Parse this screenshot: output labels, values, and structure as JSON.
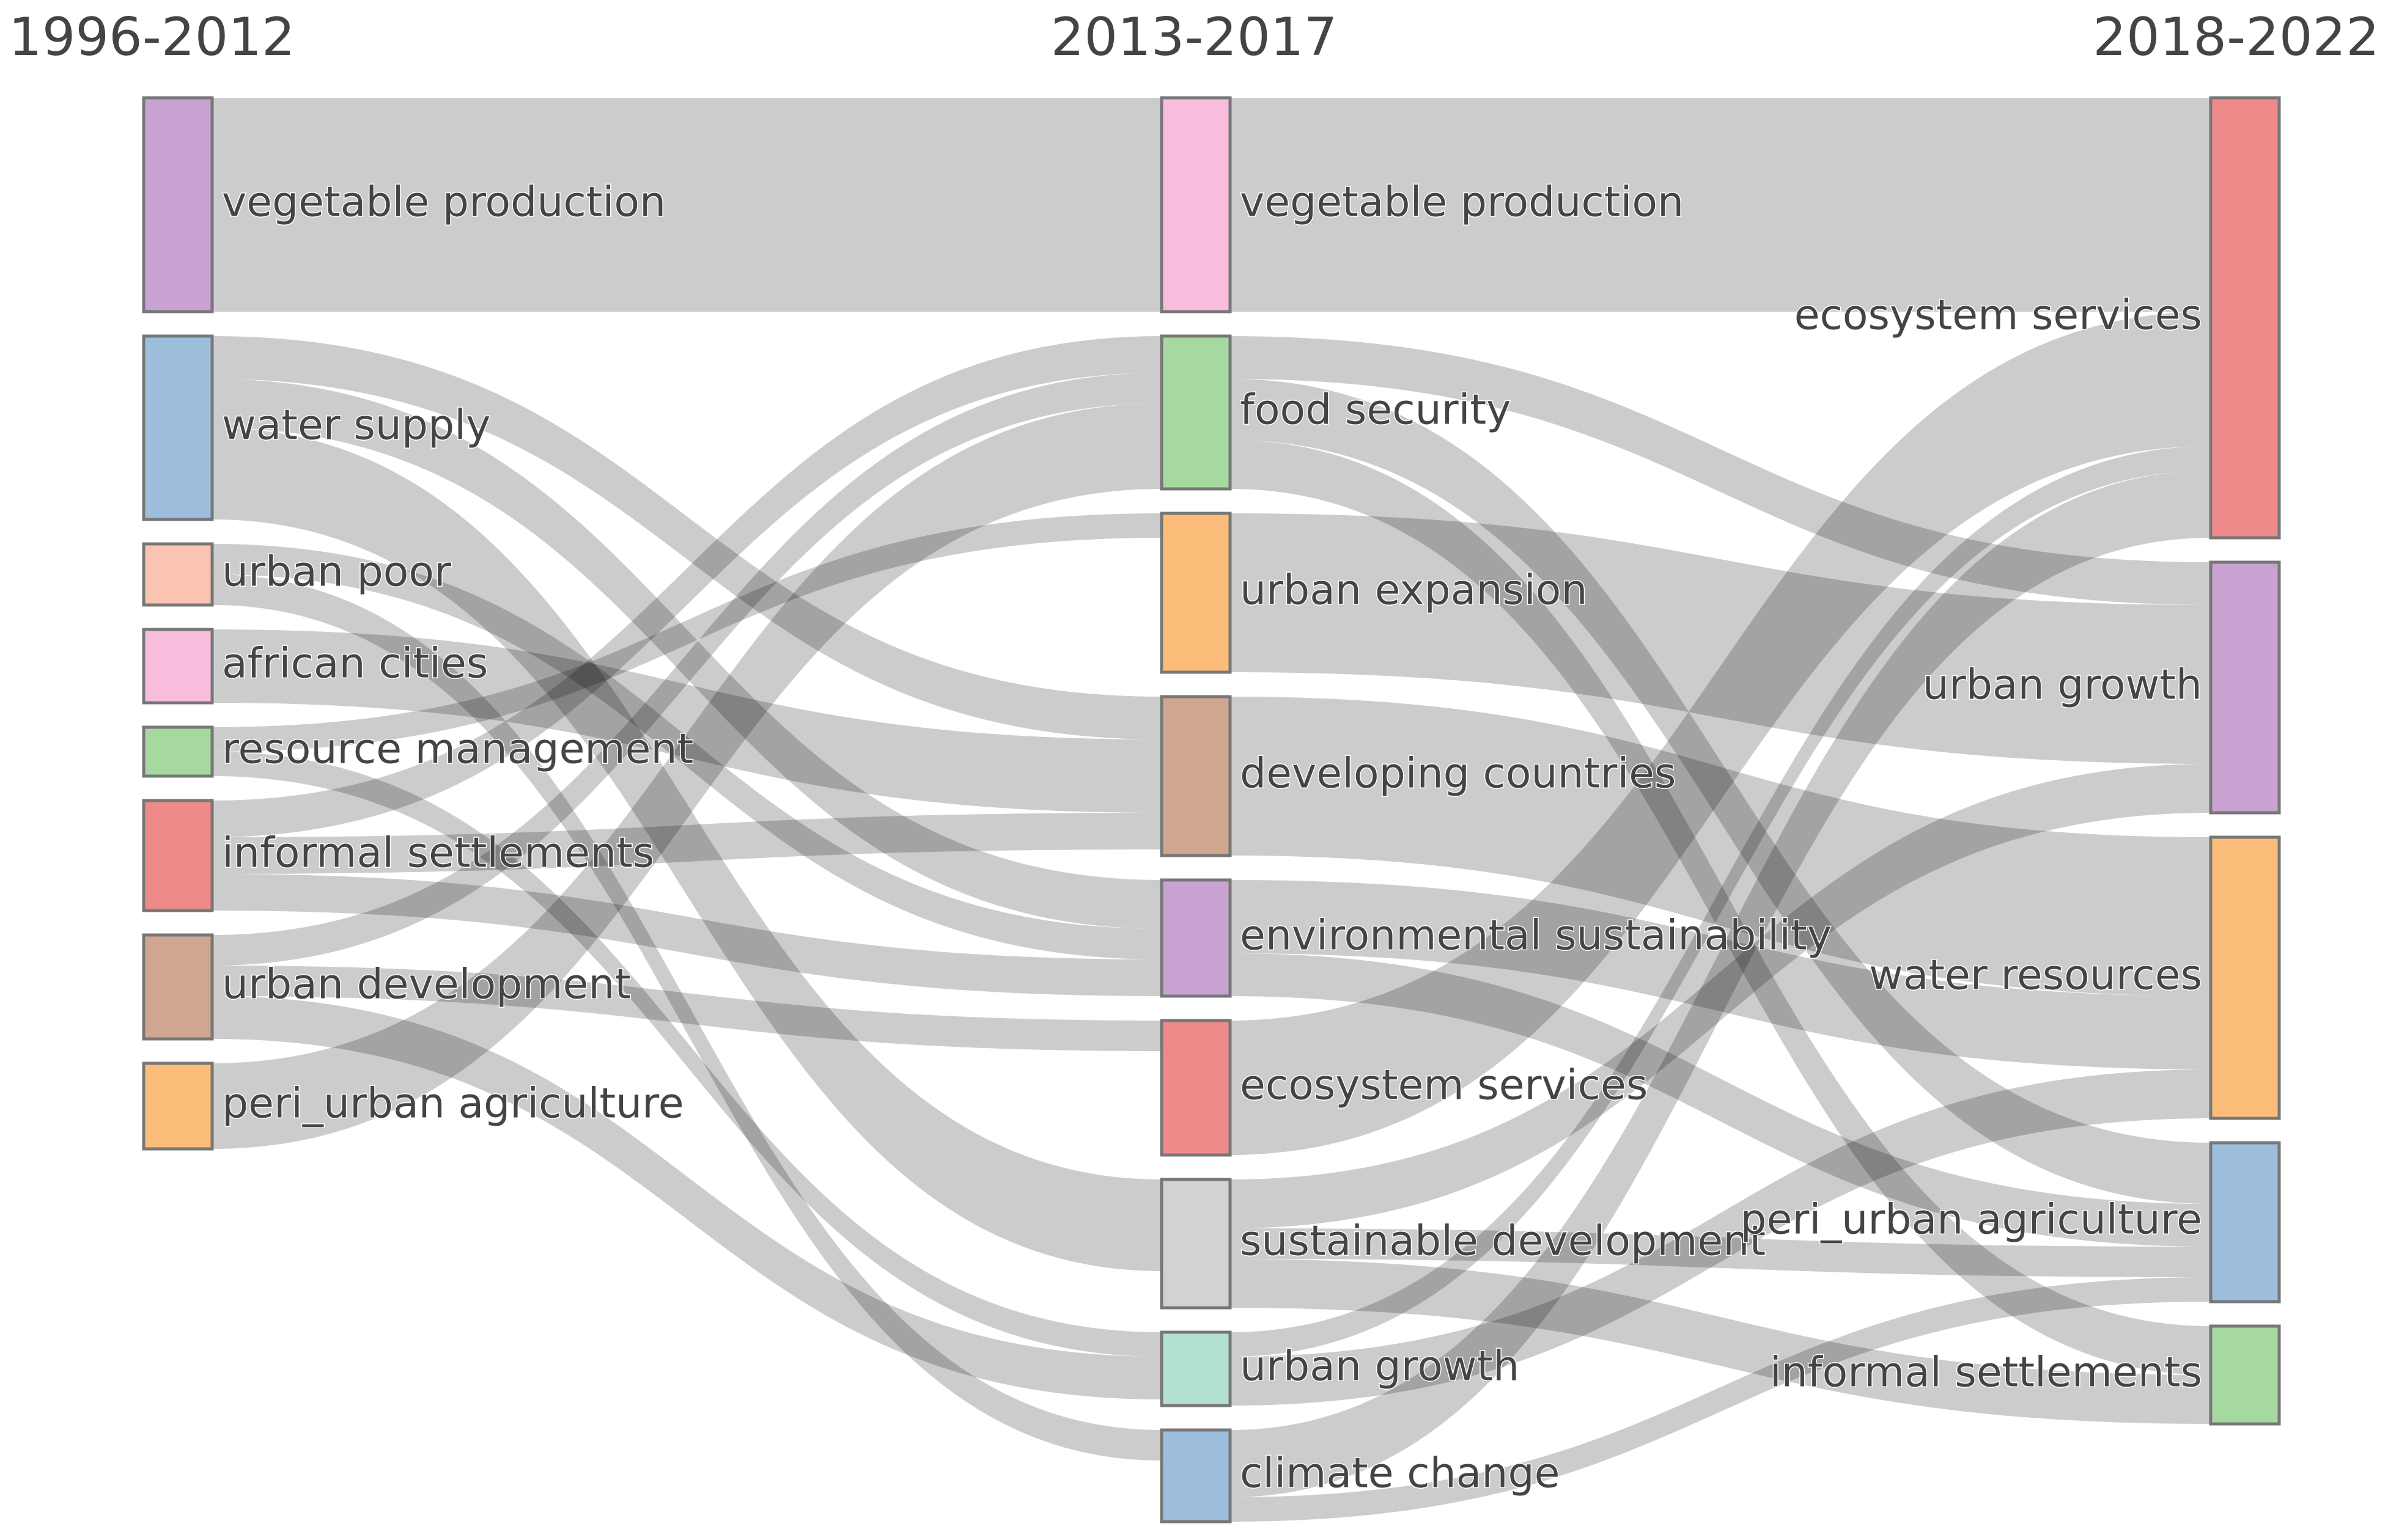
{
  "chart_data": {
    "type": "sankey",
    "title": "",
    "periods": [
      "1996-2012",
      "2013-2017",
      "2018-2022"
    ],
    "nodes": [
      {
        "id": "a_veg",
        "column": 0,
        "label": "vegetable production",
        "color": "#c8a2d0"
      },
      {
        "id": "a_water",
        "column": 0,
        "label": "water supply",
        "color": "#9dbfdd"
      },
      {
        "id": "a_poor",
        "column": 0,
        "label": "urban poor",
        "color": "#fbc4b0"
      },
      {
        "id": "a_african",
        "column": 0,
        "label": "african cities",
        "color": "#f8bddd"
      },
      {
        "id": "a_resource",
        "column": 0,
        "label": "resource management",
        "color": "#a6d9a0"
      },
      {
        "id": "a_informal",
        "column": 0,
        "label": "informal settlements",
        "color": "#ef8a8a"
      },
      {
        "id": "a_urbdev",
        "column": 0,
        "label": "urban development",
        "color": "#cfa690"
      },
      {
        "id": "a_peri",
        "column": 0,
        "label": "peri_urban agriculture",
        "color": "#fdbd7a"
      },
      {
        "id": "b_veg",
        "column": 1,
        "label": "vegetable production",
        "color": "#f8bddd"
      },
      {
        "id": "b_food",
        "column": 1,
        "label": "food security",
        "color": "#a6d9a0"
      },
      {
        "id": "b_urbexp",
        "column": 1,
        "label": "urban expansion",
        "color": "#fdbd7a"
      },
      {
        "id": "b_dev",
        "column": 1,
        "label": "developing countries",
        "color": "#cfa690"
      },
      {
        "id": "b_env",
        "column": 1,
        "label": "environmental sustainability",
        "color": "#c8a2d0"
      },
      {
        "id": "b_eco",
        "column": 1,
        "label": "ecosystem services",
        "color": "#ef8a8a"
      },
      {
        "id": "b_sust",
        "column": 1,
        "label": "sustainable development",
        "color": "#d2d2d2"
      },
      {
        "id": "b_urbgrowth",
        "column": 1,
        "label": "urban growth",
        "color": "#b2e1d3"
      },
      {
        "id": "b_climate",
        "column": 1,
        "label": "climate change",
        "color": "#9dbfdd"
      },
      {
        "id": "c_eco",
        "column": 2,
        "label": "ecosystem services",
        "color": "#ef8a8a"
      },
      {
        "id": "c_urbgrowth",
        "column": 2,
        "label": "urban growth",
        "color": "#c8a2d0"
      },
      {
        "id": "c_water",
        "column": 2,
        "label": "water resources",
        "color": "#fdbd7a"
      },
      {
        "id": "c_peri",
        "column": 2,
        "label": "peri_urban agriculture",
        "color": "#9dbfdd"
      },
      {
        "id": "c_informal",
        "column": 2,
        "label": "informal settlements",
        "color": "#a6d9a0"
      }
    ],
    "links": [
      {
        "source": "a_veg",
        "target": "b_veg",
        "value": 35
      },
      {
        "source": "a_water",
        "target": "b_env",
        "value": 8
      },
      {
        "source": "a_water",
        "target": "b_sust",
        "value": 15
      },
      {
        "source": "a_water",
        "target": "b_dev",
        "value": 7
      },
      {
        "source": "a_poor",
        "target": "b_env",
        "value": 5
      },
      {
        "source": "a_poor",
        "target": "b_climate",
        "value": 5
      },
      {
        "source": "a_african",
        "target": "b_dev",
        "value": 12
      },
      {
        "source": "a_resource",
        "target": "b_urbexp",
        "value": 4
      },
      {
        "source": "a_resource",
        "target": "b_urbgrowth",
        "value": 4
      },
      {
        "source": "a_informal",
        "target": "b_dev",
        "value": 6
      },
      {
        "source": "a_informal",
        "target": "b_env",
        "value": 6
      },
      {
        "source": "a_informal",
        "target": "b_food",
        "value": 6
      },
      {
        "source": "a_urbdev",
        "target": "b_food",
        "value": 5
      },
      {
        "source": "a_urbdev",
        "target": "b_eco",
        "value": 5
      },
      {
        "source": "a_urbdev",
        "target": "b_urbgrowth",
        "value": 7
      },
      {
        "source": "a_peri",
        "target": "b_food",
        "value": 14
      },
      {
        "source": "b_veg",
        "target": "c_eco",
        "value": 35
      },
      {
        "source": "b_food",
        "target": "c_urbgrowth",
        "value": 7
      },
      {
        "source": "b_food",
        "target": "c_peri",
        "value": 10
      },
      {
        "source": "b_food",
        "target": "c_informal",
        "value": 8
      },
      {
        "source": "b_urbexp",
        "target": "c_urbgrowth",
        "value": 26
      },
      {
        "source": "b_dev",
        "target": "c_water",
        "value": 26
      },
      {
        "source": "b_env",
        "target": "c_water",
        "value": 12
      },
      {
        "source": "b_env",
        "target": "c_peri",
        "value": 7
      },
      {
        "source": "b_eco",
        "target": "c_eco",
        "value": 22
      },
      {
        "source": "b_sust",
        "target": "c_urbgrowth",
        "value": 8
      },
      {
        "source": "b_sust",
        "target": "c_informal",
        "value": 8
      },
      {
        "source": "b_sust",
        "target": "c_peri",
        "value": 5
      },
      {
        "source": "b_urbgrowth",
        "target": "c_water",
        "value": 8
      },
      {
        "source": "b_urbgrowth",
        "target": "c_eco",
        "value": 4
      },
      {
        "source": "b_climate",
        "target": "c_eco",
        "value": 11
      },
      {
        "source": "b_climate",
        "target": "c_peri",
        "value": 4
      }
    ]
  }
}
